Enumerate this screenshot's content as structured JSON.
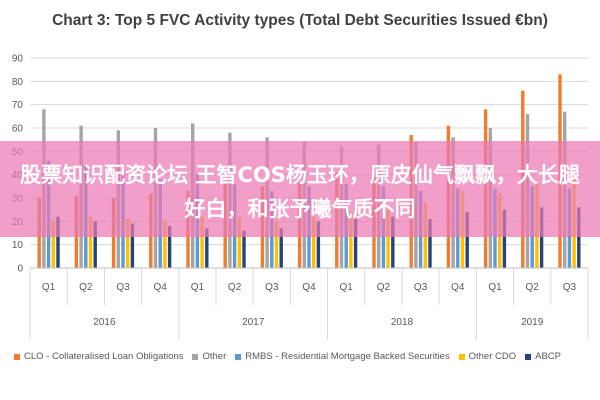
{
  "chart_data": {
    "type": "bar",
    "title": "Chart 3: Top 5 FVC Activity types (Total Debt Securities Issued €bn)",
    "xlabel": "",
    "ylabel": "",
    "ylim": [
      0,
      90
    ],
    "yticks": [
      "0",
      "10",
      "20",
      "30",
      "40",
      "50",
      "60",
      "70",
      "80",
      "90"
    ],
    "grid": "horizontal",
    "legend_position": "bottom",
    "categories": [
      "Q1",
      "Q2",
      "Q3",
      "Q4",
      "Q1",
      "Q2",
      "Q3",
      "Q4",
      "Q1",
      "Q2",
      "Q3",
      "Q4",
      "Q1",
      "Q2",
      "Q3"
    ],
    "year_groups": [
      {
        "label": "2016",
        "count": 4
      },
      {
        "label": "2017",
        "count": 4
      },
      {
        "label": "2018",
        "count": 4
      },
      {
        "label": "2019",
        "count": 3
      }
    ],
    "series": [
      {
        "name": "CLO - Collateralised Loan Obligations",
        "color": "#ED7D31",
        "values": [
          30,
          31,
          30,
          32,
          33,
          36,
          35,
          37,
          41,
          44,
          57,
          61,
          68,
          76,
          83
        ]
      },
      {
        "name": "Other",
        "color": "#A5A5A5",
        "values": [
          68,
          61,
          59,
          60,
          62,
          58,
          56,
          54,
          52,
          53,
          54,
          56,
          60,
          66,
          67
        ]
      },
      {
        "name": "RMBS - Residential Mortgage Backed Securities",
        "color": "#5B9BD5",
        "values": [
          46,
          44,
          40,
          38,
          40,
          36,
          33,
          35,
          36,
          35,
          33,
          34,
          34,
          35,
          34
        ]
      },
      {
        "name": "Other CDO",
        "color": "#FFC000",
        "values": [
          20,
          22,
          21,
          20,
          22,
          22,
          20,
          22,
          24,
          25,
          28,
          33,
          32,
          36,
          38
        ]
      },
      {
        "name": "ABCP",
        "color": "#264478",
        "values": [
          22,
          20,
          19,
          18,
          17,
          16,
          17,
          20,
          21,
          22,
          21,
          24,
          25,
          26,
          26
        ]
      }
    ]
  },
  "overlay": {
    "text": "股票知识配资论坛 王智COS杨玉环，原皮仙气飘飘，大长腿好白，和张予曦气质不同"
  }
}
